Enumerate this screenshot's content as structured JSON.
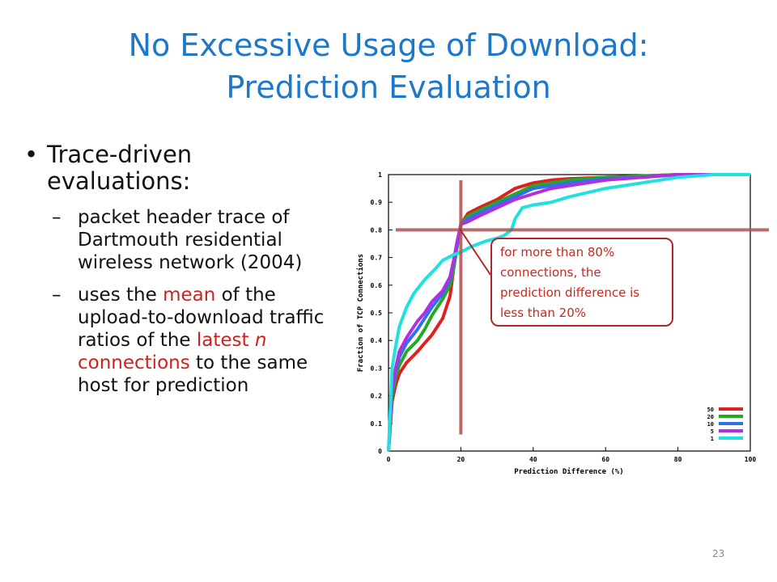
{
  "slide": {
    "title_line1": "No Excessive Usage of Download:",
    "title_line2": "Prediction Evaluation",
    "bullet_main": "Trace-driven evaluations:",
    "sub1": "packet header trace of Dartmouth residential wireless network (2004)",
    "sub2_part1": "uses the ",
    "sub2_mean": "mean",
    "sub2_part2": " of the upload-to-download traffic ratios of the ",
    "sub2_latest": "latest ",
    "sub2_n": "n",
    "sub2_conn": " connections",
    "sub2_part3": " to the same host for prediction",
    "page_number": "23"
  },
  "callout": {
    "text": "for more than 80% connections, the prediction difference is less than 20%"
  },
  "chart_data": {
    "type": "line",
    "xlabel": "Prediction Difference (%)",
    "ylabel": "Fraction of TCP Connections",
    "xlim": [
      0,
      100
    ],
    "ylim": [
      0,
      1
    ],
    "xticks": [
      "0",
      "20",
      "40",
      "60",
      "80",
      "100"
    ],
    "yticks": [
      "0",
      "0.1",
      "0.2",
      "0.3",
      "0.4",
      "0.5",
      "0.6",
      "0.7",
      "0.8",
      "0.9",
      "1"
    ],
    "legend_position": "bottom-right",
    "colors": {
      "50": "#e02020",
      "20": "#22aa22",
      "10": "#3070ee",
      "5": "#b030e0",
      "1": "#20e0e0",
      "crosshair": "#b05050"
    },
    "series": [
      {
        "name": "50",
        "x": [
          0,
          1,
          2,
          3,
          5,
          8,
          10,
          12,
          15,
          17,
          18,
          19,
          20,
          22,
          25,
          30,
          35,
          40,
          45,
          50,
          60,
          70,
          80,
          90,
          100
        ],
        "y": [
          0,
          0.18,
          0.24,
          0.28,
          0.32,
          0.36,
          0.39,
          0.42,
          0.48,
          0.56,
          0.66,
          0.75,
          0.82,
          0.86,
          0.88,
          0.91,
          0.95,
          0.97,
          0.98,
          0.985,
          0.99,
          0.995,
          1,
          1,
          1
        ]
      },
      {
        "name": "20",
        "x": [
          0,
          1,
          2,
          3,
          5,
          8,
          10,
          12,
          15,
          17,
          18,
          19,
          20,
          22,
          25,
          30,
          35,
          40,
          45,
          50,
          60,
          70,
          80,
          90,
          100
        ],
        "y": [
          0,
          0.2,
          0.27,
          0.31,
          0.36,
          0.4,
          0.44,
          0.49,
          0.55,
          0.6,
          0.66,
          0.74,
          0.82,
          0.85,
          0.87,
          0.9,
          0.93,
          0.96,
          0.97,
          0.98,
          0.99,
          0.995,
          1,
          1,
          1
        ]
      },
      {
        "name": "10",
        "x": [
          0,
          1,
          2,
          3,
          5,
          8,
          10,
          12,
          15,
          17,
          18,
          19,
          20,
          22,
          25,
          30,
          35,
          40,
          45,
          50,
          60,
          70,
          80,
          90,
          100
        ],
        "y": [
          0,
          0.22,
          0.29,
          0.34,
          0.39,
          0.44,
          0.48,
          0.52,
          0.57,
          0.62,
          0.68,
          0.75,
          0.82,
          0.84,
          0.86,
          0.89,
          0.92,
          0.95,
          0.96,
          0.97,
          0.985,
          0.99,
          1,
          1,
          1
        ]
      },
      {
        "name": "5",
        "x": [
          0,
          1,
          2,
          3,
          5,
          8,
          10,
          12,
          15,
          17,
          18,
          19,
          20,
          22,
          25,
          30,
          35,
          40,
          45,
          50,
          60,
          70,
          80,
          90,
          100
        ],
        "y": [
          0,
          0.23,
          0.3,
          0.36,
          0.41,
          0.47,
          0.5,
          0.54,
          0.58,
          0.63,
          0.69,
          0.76,
          0.82,
          0.83,
          0.85,
          0.88,
          0.91,
          0.93,
          0.95,
          0.96,
          0.98,
          0.99,
          1,
          1,
          1
        ]
      },
      {
        "name": "1",
        "x": [
          0,
          1,
          2,
          3,
          5,
          7,
          10,
          13,
          15,
          18,
          20,
          23,
          27,
          30,
          32,
          34,
          35,
          37,
          40,
          45,
          50,
          60,
          70,
          80,
          90,
          100
        ],
        "y": [
          0,
          0.3,
          0.38,
          0.45,
          0.52,
          0.57,
          0.62,
          0.66,
          0.69,
          0.71,
          0.72,
          0.74,
          0.76,
          0.77,
          0.78,
          0.8,
          0.84,
          0.88,
          0.89,
          0.9,
          0.92,
          0.95,
          0.97,
          0.99,
          1,
          1
        ]
      }
    ],
    "crosshair": {
      "x": 20,
      "y": 0.8
    }
  }
}
